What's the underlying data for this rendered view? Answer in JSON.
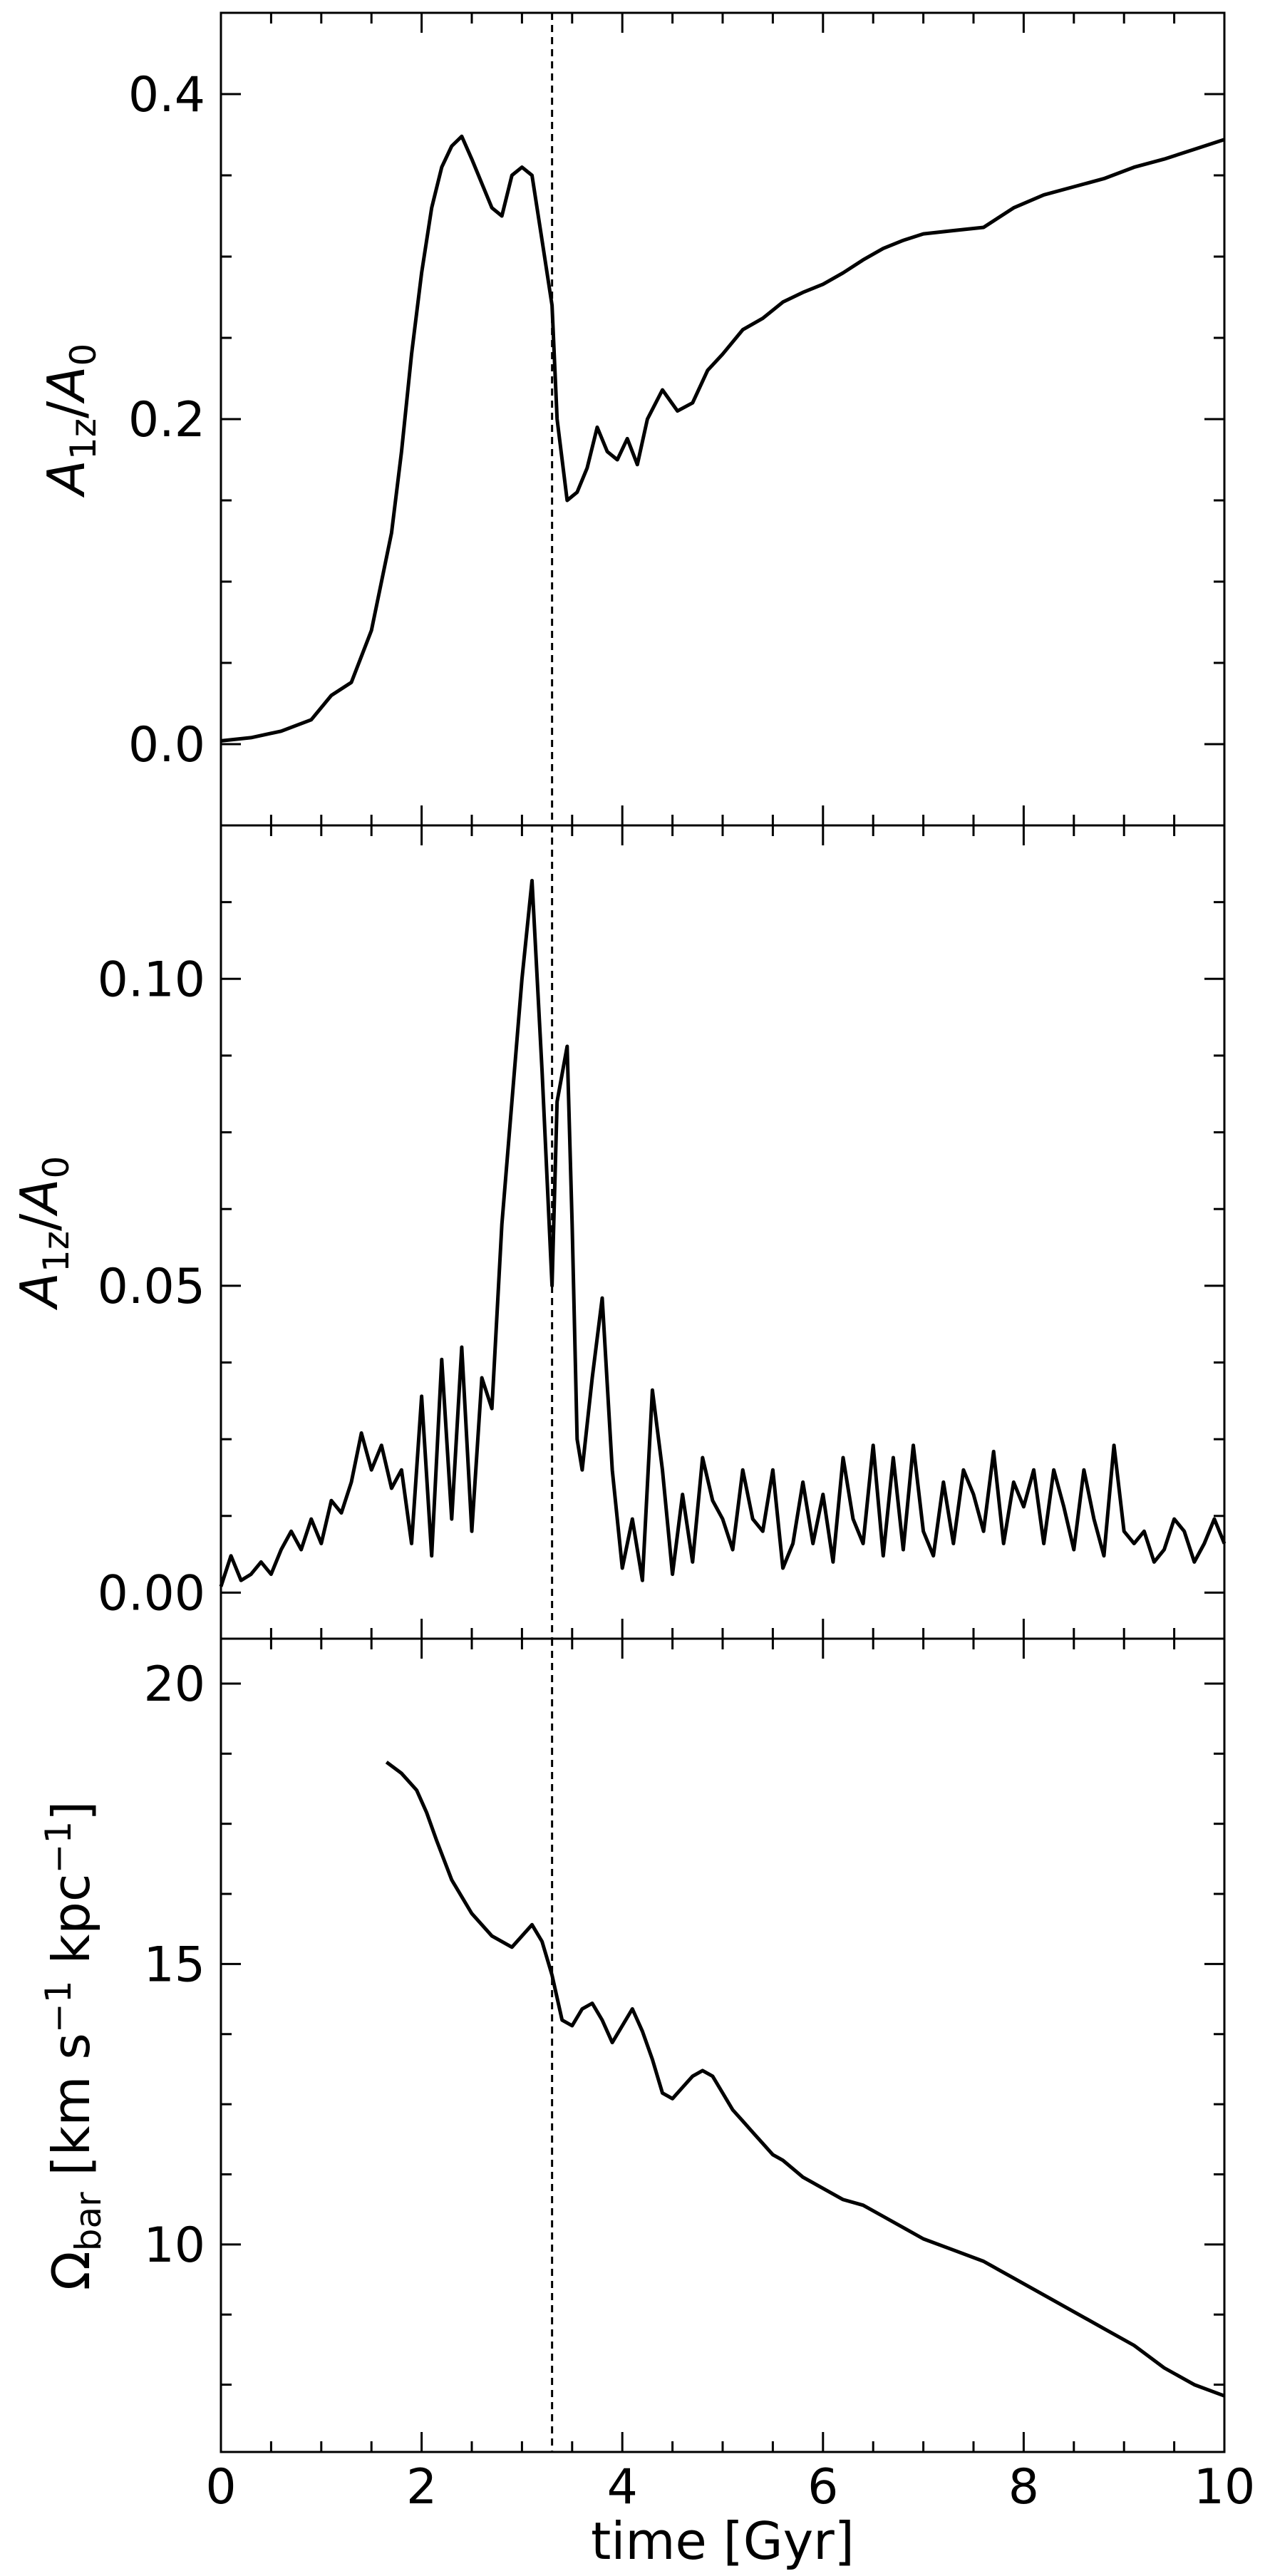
{
  "figure": {
    "xlabel": "time [Gyr]",
    "xticks": [
      "0",
      "2",
      "4",
      "6",
      "8",
      "10"
    ],
    "xlim": [
      0,
      10
    ],
    "event_time_gyr": 3.3
  },
  "chart_data": [
    {
      "type": "line",
      "ylabel": "A_{1z}/A_0",
      "ylim": [
        -0.05,
        0.45
      ],
      "yticks": [
        0.0,
        0.2,
        0.4
      ],
      "ytick_labels": [
        "0.0",
        "0.2",
        "0.4"
      ],
      "series": [
        {
          "x": [
            0,
            0.3,
            0.6,
            0.9,
            1.1,
            1.3,
            1.5,
            1.6,
            1.7,
            1.8,
            1.9,
            2.0,
            2.1,
            2.2,
            2.3,
            2.4,
            2.5,
            2.6,
            2.7,
            2.8,
            2.9,
            3.0,
            3.1,
            3.2,
            3.3,
            3.35,
            3.45,
            3.55,
            3.65,
            3.75,
            3.85,
            3.95,
            4.05,
            4.15,
            4.25,
            4.4,
            4.55,
            4.7,
            4.85,
            5.0,
            5.2,
            5.4,
            5.6,
            5.8,
            6.0,
            6.2,
            6.4,
            6.6,
            6.8,
            7.0,
            7.3,
            7.6,
            7.9,
            8.2,
            8.5,
            8.8,
            9.1,
            9.4,
            9.7,
            10.0
          ],
          "y": [
            0.002,
            0.004,
            0.008,
            0.015,
            0.03,
            0.038,
            0.07,
            0.1,
            0.13,
            0.18,
            0.24,
            0.29,
            0.33,
            0.355,
            0.368,
            0.374,
            0.36,
            0.345,
            0.33,
            0.325,
            0.35,
            0.355,
            0.35,
            0.31,
            0.27,
            0.2,
            0.15,
            0.155,
            0.17,
            0.195,
            0.18,
            0.175,
            0.188,
            0.172,
            0.2,
            0.218,
            0.205,
            0.21,
            0.23,
            0.24,
            0.255,
            0.262,
            0.272,
            0.278,
            0.283,
            0.29,
            0.298,
            0.305,
            0.31,
            0.314,
            0.316,
            0.318,
            0.33,
            0.338,
            0.343,
            0.348,
            0.355,
            0.36,
            0.366,
            0.372
          ]
        }
      ]
    },
    {
      "type": "line",
      "ylabel": "A_{1z}/A_0",
      "ylim": [
        -0.0075,
        0.125
      ],
      "yticks": [
        0.0,
        0.05,
        0.1
      ],
      "ytick_labels": [
        "0.00",
        "0.05",
        "0.10"
      ],
      "series": [
        {
          "x": [
            0,
            0.1,
            0.2,
            0.3,
            0.4,
            0.5,
            0.6,
            0.7,
            0.8,
            0.9,
            1.0,
            1.1,
            1.2,
            1.3,
            1.4,
            1.5,
            1.6,
            1.7,
            1.8,
            1.9,
            2.0,
            2.1,
            2.2,
            2.3,
            2.4,
            2.5,
            2.6,
            2.7,
            2.8,
            2.9,
            3.0,
            3.1,
            3.2,
            3.3,
            3.35,
            3.45,
            3.5,
            3.55,
            3.6,
            3.7,
            3.8,
            3.9,
            4.0,
            4.1,
            4.2,
            4.3,
            4.4,
            4.5,
            4.6,
            4.7,
            4.8,
            4.9,
            5.0,
            5.1,
            5.2,
            5.3,
            5.4,
            5.5,
            5.6,
            5.7,
            5.8,
            5.9,
            6.0,
            6.1,
            6.2,
            6.3,
            6.4,
            6.5,
            6.6,
            6.7,
            6.8,
            6.9,
            7.0,
            7.1,
            7.2,
            7.3,
            7.4,
            7.5,
            7.6,
            7.7,
            7.8,
            7.9,
            8.0,
            8.1,
            8.2,
            8.3,
            8.4,
            8.5,
            8.6,
            8.7,
            8.8,
            8.9,
            9.0,
            9.1,
            9.2,
            9.3,
            9.4,
            9.5,
            9.6,
            9.7,
            9.8,
            9.9,
            10.0
          ],
          "y": [
            0.001,
            0.006,
            0.002,
            0.003,
            0.005,
            0.003,
            0.007,
            0.01,
            0.007,
            0.012,
            0.008,
            0.015,
            0.013,
            0.018,
            0.026,
            0.02,
            0.024,
            0.017,
            0.02,
            0.008,
            0.032,
            0.006,
            0.038,
            0.012,
            0.04,
            0.01,
            0.035,
            0.03,
            0.06,
            0.08,
            0.1,
            0.116,
            0.085,
            0.05,
            0.08,
            0.089,
            0.06,
            0.025,
            0.02,
            0.035,
            0.048,
            0.02,
            0.004,
            0.012,
            0.002,
            0.033,
            0.02,
            0.003,
            0.016,
            0.005,
            0.022,
            0.015,
            0.012,
            0.007,
            0.02,
            0.012,
            0.01,
            0.02,
            0.004,
            0.008,
            0.018,
            0.008,
            0.016,
            0.005,
            0.022,
            0.012,
            0.008,
            0.024,
            0.006,
            0.022,
            0.007,
            0.024,
            0.01,
            0.006,
            0.018,
            0.008,
            0.02,
            0.016,
            0.01,
            0.023,
            0.008,
            0.018,
            0.014,
            0.02,
            0.008,
            0.02,
            0.014,
            0.007,
            0.02,
            0.012,
            0.006,
            0.024,
            0.01,
            0.008,
            0.01,
            0.005,
            0.007,
            0.012,
            0.01,
            0.005,
            0.008,
            0.012,
            0.008
          ]
        }
      ]
    },
    {
      "type": "line",
      "ylabel": "Ω_bar [km s^{-1} kpc^{-1}]",
      "ylim": [
        6.3,
        20.8
      ],
      "yticks": [
        10,
        15,
        20
      ],
      "ytick_labels": [
        "10",
        "15",
        "20"
      ],
      "series": [
        {
          "x": [
            1.65,
            1.8,
            1.95,
            2.05,
            2.15,
            2.3,
            2.5,
            2.7,
            2.9,
            3.0,
            3.1,
            3.2,
            3.3,
            3.4,
            3.5,
            3.6,
            3.7,
            3.8,
            3.9,
            4.0,
            4.1,
            4.2,
            4.3,
            4.4,
            4.5,
            4.6,
            4.7,
            4.8,
            4.9,
            5.0,
            5.1,
            5.2,
            5.3,
            5.4,
            5.5,
            5.6,
            5.8,
            6.0,
            6.2,
            6.4,
            6.6,
            6.8,
            7.0,
            7.3,
            7.6,
            7.9,
            8.2,
            8.5,
            8.8,
            9.1,
            9.4,
            9.7,
            10.0
          ],
          "y": [
            18.6,
            18.4,
            18.1,
            17.7,
            17.2,
            16.5,
            15.9,
            15.5,
            15.3,
            15.5,
            15.7,
            15.4,
            14.8,
            14.0,
            13.9,
            14.2,
            14.3,
            14.0,
            13.6,
            13.9,
            14.2,
            13.8,
            13.3,
            12.7,
            12.6,
            12.8,
            13.0,
            13.1,
            13.0,
            12.7,
            12.4,
            12.2,
            12.0,
            11.8,
            11.6,
            11.5,
            11.2,
            11.0,
            10.8,
            10.7,
            10.5,
            10.3,
            10.1,
            9.9,
            9.7,
            9.4,
            9.1,
            8.8,
            8.5,
            8.2,
            7.8,
            7.5,
            7.3
          ]
        }
      ]
    }
  ]
}
